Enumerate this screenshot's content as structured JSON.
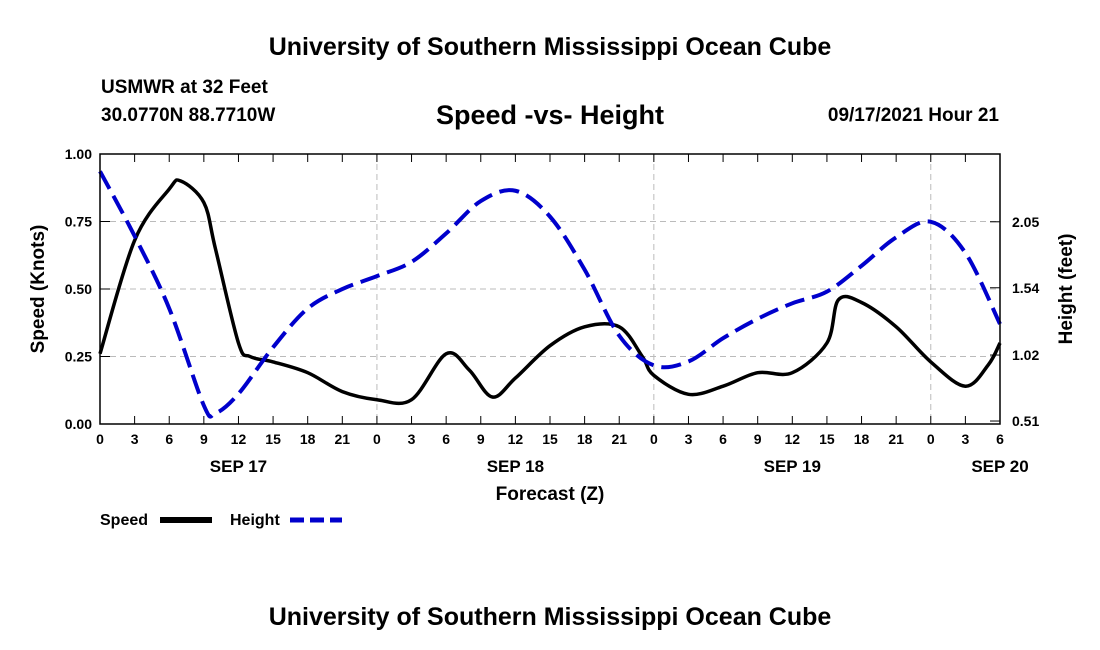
{
  "header": {
    "title_top": "University of Southern Mississippi Ocean Cube",
    "title_bottom": "University of Southern Mississippi Ocean Cube",
    "station": "USMWR at 32 Feet",
    "coords": "30.0770N  88.7710W",
    "datetime": "09/17/2021 Hour 21"
  },
  "colors": {
    "speed": "#000000",
    "height": "#0000cc",
    "grid": "#bbbbbb"
  },
  "chart_data": {
    "type": "line",
    "title": "Speed -vs- Height",
    "xlabel": "Forecast (Z)",
    "ylabel": "Speed (Knots)",
    "y2label": "Height (feet)",
    "x_hours": [
      0,
      3,
      6,
      9,
      12,
      15,
      18,
      21,
      24,
      27,
      30,
      33,
      36,
      39,
      42,
      45,
      48,
      51,
      54,
      57,
      60,
      63,
      66,
      69,
      72,
      75,
      78
    ],
    "x_tick_labels": [
      "0",
      "3",
      "6",
      "9",
      "12",
      "15",
      "18",
      "21",
      "0",
      "3",
      "6",
      "9",
      "12",
      "15",
      "18",
      "21",
      "0",
      "3",
      "6",
      "9",
      "12",
      "15",
      "18",
      "21",
      "0",
      "3",
      "6"
    ],
    "date_labels": [
      {
        "label": "SEP 17",
        "hour": 12
      },
      {
        "label": "SEP 18",
        "hour": 36
      },
      {
        "label": "SEP 19",
        "hour": 60
      },
      {
        "label": "SEP 20",
        "hour": 78
      }
    ],
    "xlim": [
      0,
      78
    ],
    "ylim": [
      0,
      1.0
    ],
    "y_ticks": [
      0.0,
      0.25,
      0.5,
      0.75,
      1.0
    ],
    "y_tick_labels": [
      "0.00",
      "0.25",
      "0.50",
      "0.75",
      "1.00"
    ],
    "y2lim": [
      0.487,
      2.574
    ],
    "y2_ticks": [
      0.51,
      1.02,
      1.54,
      2.05
    ],
    "y2_tick_labels": [
      "0.51",
      "1.02",
      "1.54",
      "2.05"
    ],
    "series": [
      {
        "name": "Speed",
        "axis": "left",
        "x": [
          0,
          3,
          6,
          7,
          9,
          10,
          12,
          13,
          15,
          18,
          21,
          24,
          27,
          30,
          32,
          34,
          36,
          39,
          42,
          45,
          47,
          48,
          51,
          54,
          57,
          60,
          63,
          64,
          66,
          69,
          72,
          75,
          77,
          78
        ],
        "values": [
          0.26,
          0.68,
          0.87,
          0.9,
          0.82,
          0.65,
          0.3,
          0.25,
          0.23,
          0.19,
          0.12,
          0.09,
          0.09,
          0.26,
          0.2,
          0.1,
          0.17,
          0.29,
          0.36,
          0.36,
          0.25,
          0.18,
          0.11,
          0.14,
          0.19,
          0.19,
          0.3,
          0.46,
          0.45,
          0.36,
          0.23,
          0.14,
          0.22,
          0.3
        ]
      },
      {
        "name": "Height",
        "axis": "right",
        "x": [
          0,
          3,
          6,
          9,
          10,
          12,
          15,
          18,
          21,
          24,
          27,
          30,
          33,
          36,
          39,
          42,
          45,
          48,
          51,
          54,
          57,
          60,
          63,
          66,
          69,
          72,
          75,
          78
        ],
        "values": [
          2.44,
          1.94,
          1.38,
          0.63,
          0.57,
          0.72,
          1.08,
          1.38,
          1.53,
          1.63,
          1.74,
          1.96,
          2.21,
          2.29,
          2.09,
          1.68,
          1.17,
          0.94,
          0.97,
          1.15,
          1.3,
          1.42,
          1.51,
          1.71,
          1.93,
          2.05,
          1.81,
          1.26
        ]
      }
    ],
    "legend": [
      {
        "label": "Speed"
      },
      {
        "label": "Height"
      }
    ],
    "legend_position": "bottom-left"
  }
}
